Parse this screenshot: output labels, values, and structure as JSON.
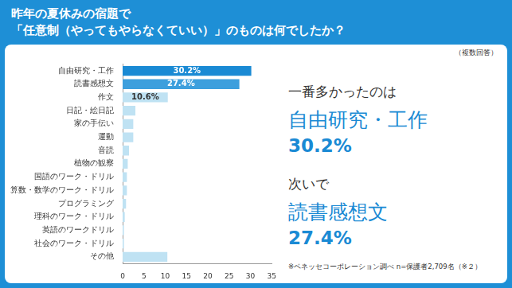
{
  "chart_data": {
    "type": "bar",
    "orientation": "horizontal",
    "title": [
      "昨年の夏休みの宿題で",
      "「任意制（やってもやらなくていい）」のものは何でしたか？"
    ],
    "subtitle": "（複数回答）",
    "categories": [
      "自由研究・工作",
      "読書感想文",
      "作文",
      "日記・絵日記",
      "家の手伝い",
      "運動",
      "音読",
      "植物の観察",
      "国語のワーク・ドリル",
      "算数・数学のワーク・ドリル",
      "プログラミング",
      "理科のワーク・ドリル",
      "英語のワークドリル",
      "社会のワーク・ドリル",
      "その他"
    ],
    "values": [
      30.2,
      27.4,
      10.6,
      3.0,
      2.5,
      2.5,
      1.5,
      1.2,
      1.0,
      1.0,
      0.8,
      0.5,
      0.3,
      0.3,
      10.5
    ],
    "value_labels": [
      "30.2%",
      "27.4%",
      "10.6%",
      null,
      null,
      null,
      null,
      null,
      null,
      null,
      null,
      null,
      null,
      null,
      null
    ],
    "data_labels": true,
    "colors": [
      "#1a8ad4",
      "#3d9fdd",
      "#bfe2f3",
      "#bfe2f3",
      "#bfe2f3",
      "#bfe2f3",
      "#bfe2f3",
      "#bfe2f3",
      "#bfe2f3",
      "#bfe2f3",
      "#bfe2f3",
      "#bfe2f3",
      "#bfe2f3",
      "#bfe2f3",
      "#bfe2f3"
    ],
    "xlim": [
      0,
      35
    ],
    "xticks": [
      0,
      5,
      10,
      15,
      20,
      25,
      30,
      35
    ],
    "grid": false,
    "annotations": [
      "一番多かったのは",
      "自由研究・工作",
      "30.2%",
      "次いで",
      "読書感想文",
      "27.4%",
      "※ベネッセコーポレーション調べ n=保護者2,709名（※２）"
    ]
  }
}
